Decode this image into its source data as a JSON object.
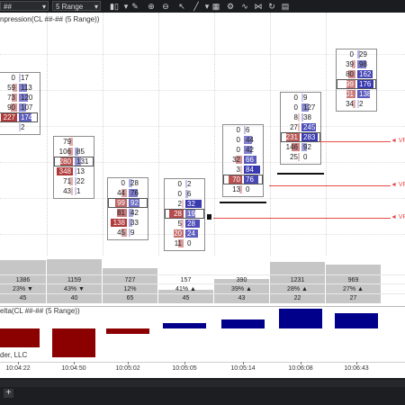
{
  "toolbar": {
    "instrument": "##",
    "interval": "5 Range",
    "icons": [
      "bar-type-icon",
      "chart-style-icon",
      "pencil-icon",
      "zoom-in-icon",
      "zoom-out-icon",
      "cursor-icon",
      "draw-line-icon",
      "properties-icon",
      "strategies-icon",
      "refresh-icon",
      "data-box-icon"
    ]
  },
  "chart_title": "npression(CL ##-## (5 Range))",
  "price_markers": {
    "label": "◄ VP",
    "color": "#e84a4a"
  },
  "footprint": {
    "bid_color": "#b03a3a",
    "ask_color": "#3a3ab0",
    "columns": [
      {
        "name": "footprint-bar-1",
        "rows": [
          [
            "0",
            "17"
          ],
          [
            "59",
            "113"
          ],
          [
            "73",
            "120"
          ],
          [
            "90",
            "107"
          ],
          [
            "227",
            "174"
          ],
          [
            "",
            "2"
          ]
        ]
      },
      {
        "name": "footprint-bar-2",
        "rows": [
          [
            "79",
            ""
          ],
          [
            "106",
            "85"
          ],
          [
            "280",
            "131"
          ],
          [
            "348",
            "13"
          ],
          [
            "71",
            "22"
          ],
          [
            "43",
            "1"
          ]
        ]
      },
      {
        "name": "footprint-bar-3",
        "rows": [
          [
            "0",
            "28"
          ],
          [
            "44",
            "76"
          ],
          [
            "99",
            "92"
          ],
          [
            "81",
            "42"
          ],
          [
            "138",
            "33"
          ],
          [
            "45",
            "9"
          ]
        ]
      },
      {
        "name": "footprint-bar-4",
        "rows": [
          [
            "0",
            "2"
          ],
          [
            "0",
            "6"
          ],
          [
            "2",
            "32"
          ],
          [
            "28",
            "19"
          ],
          [
            "5",
            "28"
          ],
          [
            "20",
            "24"
          ],
          [
            "11",
            "0"
          ]
        ]
      },
      {
        "name": "footprint-bar-5",
        "rows": [
          [
            "0",
            "6"
          ],
          [
            "0",
            "44"
          ],
          [
            "0",
            "42"
          ],
          [
            "32",
            "66"
          ],
          [
            "3",
            "84"
          ],
          [
            "70",
            "76"
          ],
          [
            "13",
            "0"
          ]
        ]
      },
      {
        "name": "footprint-bar-6",
        "rows": [
          [
            "0",
            "9"
          ],
          [
            "0",
            "127"
          ],
          [
            "8",
            "38"
          ],
          [
            "27",
            "245"
          ],
          [
            "231",
            "283"
          ],
          [
            "146",
            "92"
          ],
          [
            "25",
            "0"
          ]
        ]
      },
      {
        "name": "footprint-bar-7",
        "rows": [
          [
            "0",
            "29"
          ],
          [
            "39",
            "98"
          ],
          [
            "80",
            "162"
          ],
          [
            "99",
            "176"
          ],
          [
            "101",
            "138"
          ],
          [
            "34",
            "2"
          ]
        ]
      }
    ]
  },
  "stats": {
    "columns": [
      {
        "volume": "1386",
        "pct": "23% ▼",
        "count": "45"
      },
      {
        "volume": "1159",
        "pct": "43% ▼",
        "count": "40"
      },
      {
        "volume": "727",
        "pct": "12%",
        "count": "65"
      },
      {
        "volume": "157",
        "pct": "41% ▲",
        "count": "45"
      },
      {
        "volume": "390",
        "pct": "39% ▲",
        "count": "43"
      },
      {
        "volume": "1231",
        "pct": "28% ▲",
        "count": "22"
      },
      {
        "volume": "969",
        "pct": "27% ▲",
        "count": "27"
      }
    ],
    "levels": [
      0.92,
      0.95,
      0.75,
      0.28,
      0.52,
      0.88,
      0.82
    ]
  },
  "delta": {
    "title": "elta(CL ##-## (5 Range))",
    "copyright": "der, LLC",
    "negative_color": "#8b0000",
    "positive_color": "#00008b",
    "values": [
      -227,
      -338,
      -62,
      65,
      101,
      232,
      179
    ]
  },
  "time_axis": {
    "labels": [
      "10:04:22",
      "10:04:50",
      "10:05:02",
      "10:05:05",
      "10:05:14",
      "10:06:08",
      "10:06:43"
    ]
  },
  "tabbar": {
    "add_label": "+"
  }
}
